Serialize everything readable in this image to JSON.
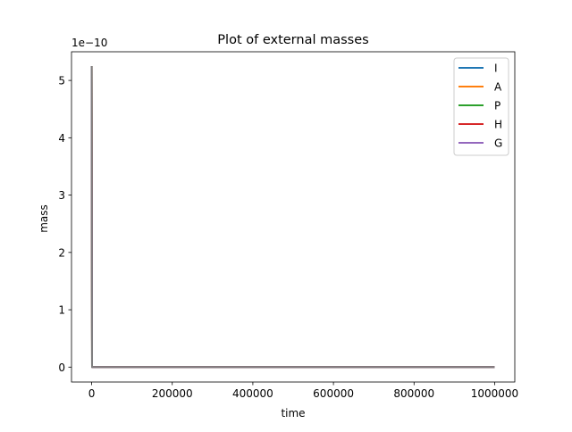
{
  "chart_data": {
    "type": "line",
    "title": "Plot of external masses",
    "xlabel": "time",
    "ylabel": "mass",
    "offset_text": "1e−10",
    "scale": 1e-10,
    "xlim": [
      -50000,
      1050000
    ],
    "ylim": [
      -0.26,
      5.5
    ],
    "xticks": [
      0,
      200000,
      400000,
      600000,
      800000,
      1000000
    ],
    "xtick_labels": [
      "0",
      "200000",
      "400000",
      "600000",
      "800000",
      "1000000"
    ],
    "yticks": [
      0,
      1,
      2,
      3,
      4,
      5
    ],
    "ytick_labels": [
      "0",
      "1",
      "2",
      "3",
      "4",
      "5"
    ],
    "grid": false,
    "legend_position": "top-right",
    "x": [
      0,
      1000,
      1000000
    ],
    "series": [
      {
        "name": "I",
        "color": "#1f77b4",
        "values": [
          5.25,
          0,
          0
        ]
      },
      {
        "name": "A",
        "color": "#ff7f0e",
        "values": [
          5.25,
          0,
          0
        ]
      },
      {
        "name": "P",
        "color": "#2ca02c",
        "values": [
          5.25,
          0,
          0
        ]
      },
      {
        "name": "H",
        "color": "#d62728",
        "values": [
          5.25,
          0,
          0
        ]
      },
      {
        "name": "G",
        "color": "#9467bd",
        "values": [
          5.25,
          0,
          0
        ]
      }
    ],
    "overlay_color": "#7f7f7f"
  }
}
